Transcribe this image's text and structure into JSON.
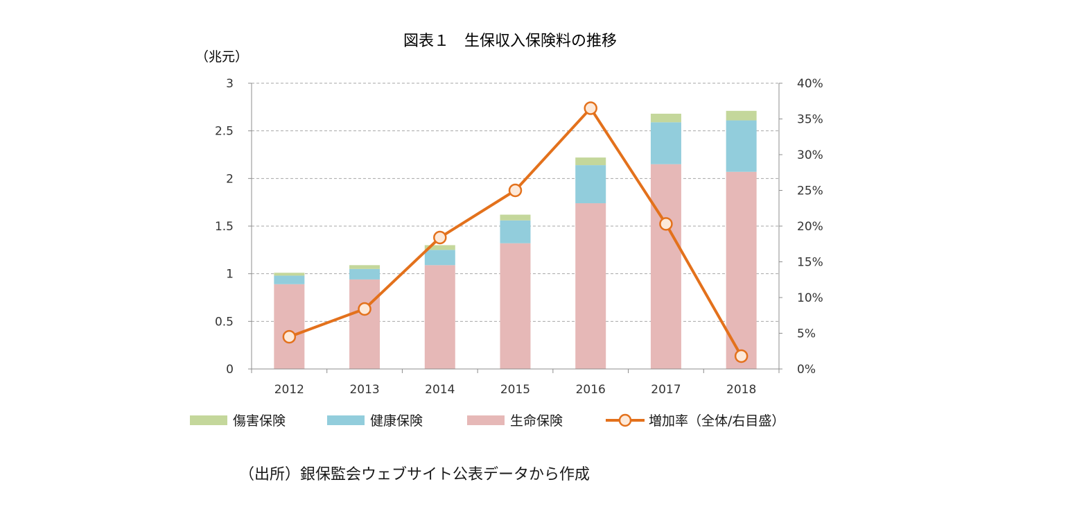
{
  "chart_data": {
    "type": "bar",
    "stacked": true,
    "title": "図表１　生保収入保険料の推移",
    "ylabel": "（兆元）",
    "categories": [
      "2012",
      "2013",
      "2014",
      "2015",
      "2016",
      "2017",
      "2018"
    ],
    "ylim": [
      0,
      3
    ],
    "yticks": [
      "0",
      "0.5",
      "1",
      "1.5",
      "2",
      "2.5",
      "3"
    ],
    "y2lim": [
      0,
      40
    ],
    "y2ticks": [
      "0%",
      "5%",
      "10%",
      "15%",
      "20%",
      "25%",
      "30%",
      "35%",
      "40%"
    ],
    "grid": true,
    "legend_position": "bottom",
    "series": [
      {
        "name": "生命保険",
        "color": "#e6b8b7",
        "values": [
          0.89,
          0.94,
          1.09,
          1.32,
          1.74,
          2.15,
          2.07
        ]
      },
      {
        "name": "健康保険",
        "color": "#92cddc",
        "values": [
          0.09,
          0.11,
          0.16,
          0.24,
          0.4,
          0.44,
          0.54
        ]
      },
      {
        "name": "傷害保険",
        "color": "#c4d79b",
        "values": [
          0.03,
          0.04,
          0.05,
          0.06,
          0.08,
          0.09,
          0.1
        ]
      }
    ],
    "line_series": {
      "name": "増加率（全体/右目盛）",
      "color": "#e3711c",
      "axis": "right",
      "values": [
        4.5,
        8.4,
        18.4,
        25.0,
        36.5,
        20.3,
        1.8
      ]
    },
    "legend_order": [
      "傷害保険",
      "健康保険",
      "生命保険",
      "増加率（全体/右目盛）"
    ]
  },
  "source_note": "（出所）銀保監会ウェブサイト公表データから作成"
}
